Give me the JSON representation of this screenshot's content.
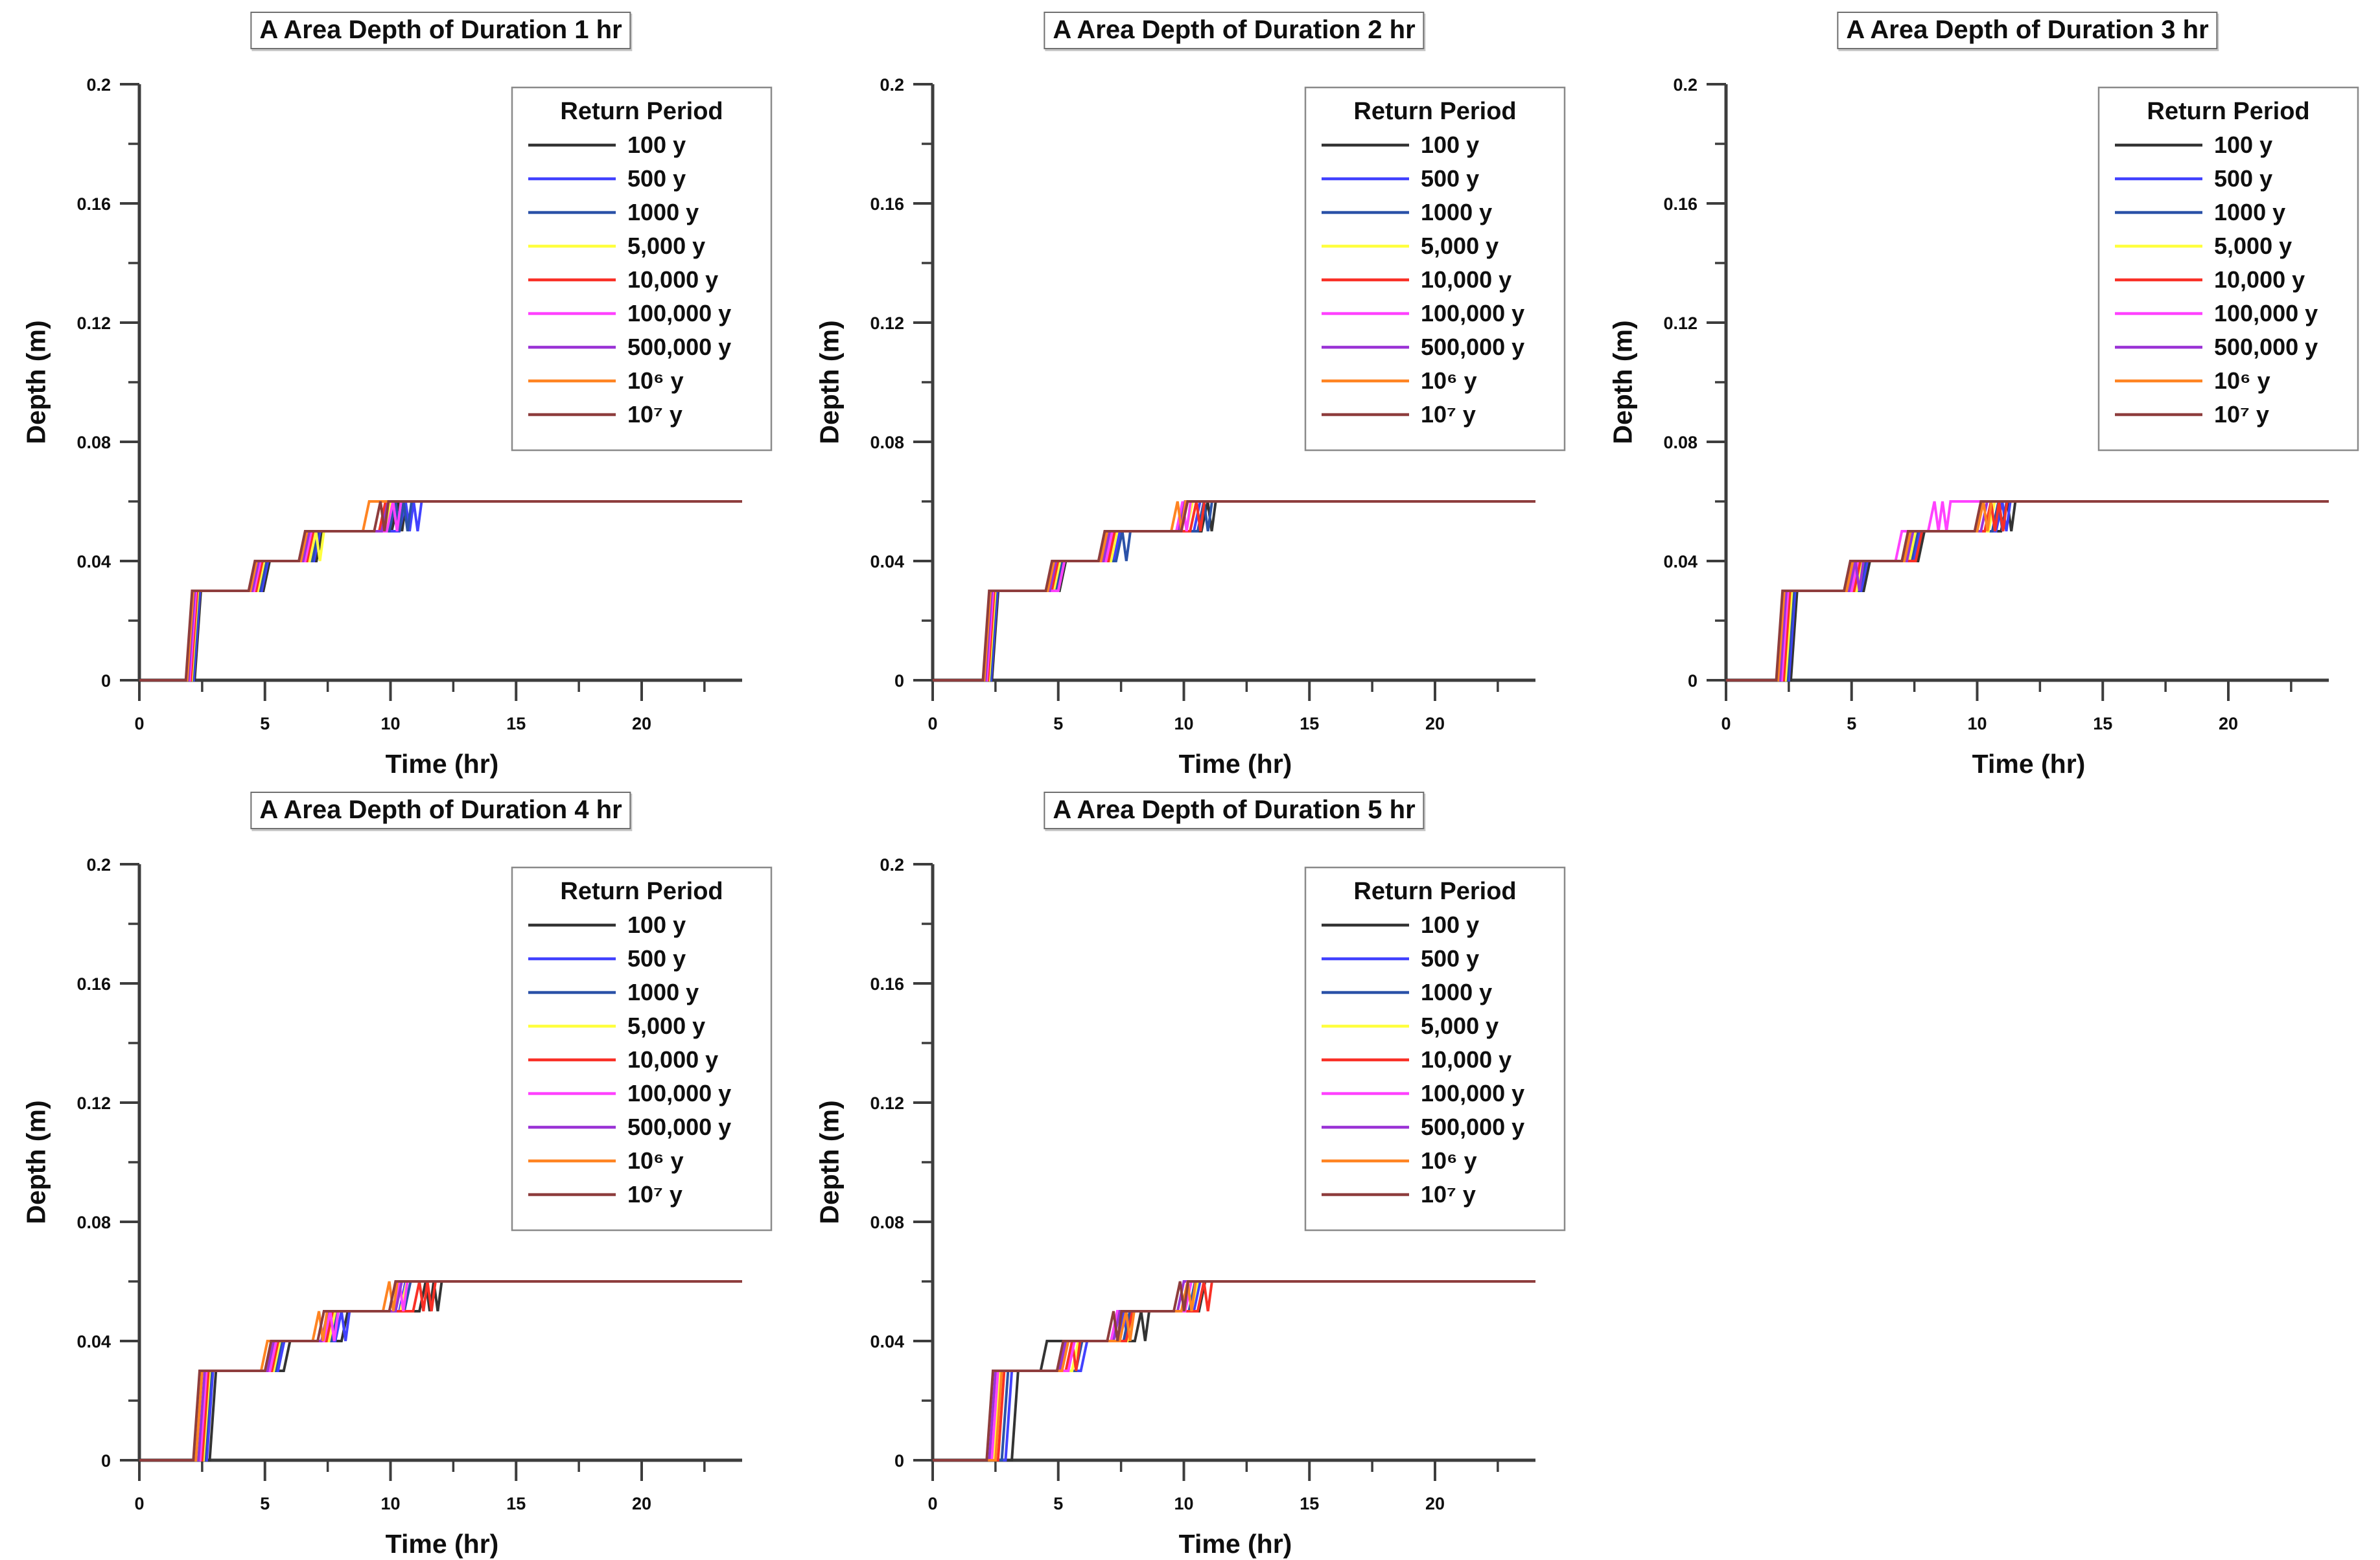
{
  "page": {
    "background": "#ffffff"
  },
  "chart_data": [
    {
      "type": "line",
      "subtype": "step",
      "title": "A Area Depth of Duration 1 hr",
      "xlabel": "Time (hr)",
      "ylabel": "Depth (m)",
      "xlim": [
        0,
        24
      ],
      "ylim": [
        0,
        0.2
      ],
      "xticks_major": [
        0,
        5,
        10,
        15,
        20
      ],
      "xtick_labels": [
        "0",
        "5",
        "10",
        "15",
        "20"
      ],
      "xticks_minor": [
        2.5,
        7.5,
        12.5,
        17.5,
        22.5
      ],
      "yticks_major": [
        0,
        0.04,
        0.08,
        0.12,
        0.16,
        0.2
      ],
      "ytick_labels": [
        "0",
        "0.04",
        "0.08",
        "0.12",
        "0.16",
        "0.2"
      ],
      "yticks_minor": [
        0.02,
        0.06,
        0.1,
        0.14,
        0.18
      ],
      "grid": false,
      "legend_title": "Return Period",
      "legend_position": "upper right",
      "depth_levels": [
        0.03,
        0.04,
        0.05,
        0.06
      ],
      "rise_duration": 0.25,
      "series": [
        {
          "name": "100 y",
          "color": "#333333",
          "step_times": [
            2.2,
            4.94,
            7.05,
            10.05
          ],
          "wiggles": [
            [
              3,
              1
            ]
          ]
        },
        {
          "name": "500 y",
          "color": "#4141ff",
          "step_times": [
            2.16,
            4.87,
            6.95,
            10.35
          ],
          "wiggles": [
            [
              3,
              2
            ]
          ]
        },
        {
          "name": "1000 y",
          "color": "#2b52a8",
          "step_times": [
            2.12,
            4.8,
            6.88,
            9.95
          ],
          "wiggles": [
            [
              3,
              2
            ]
          ]
        },
        {
          "name": "5,000 y",
          "color": "#ffff3d",
          "step_times": [
            2.08,
            4.72,
            6.78,
            9.75
          ],
          "wiggles": [
            [
              2,
              1
            ]
          ]
        },
        {
          "name": "10,000 y",
          "color": "#f93026",
          "step_times": [
            2.05,
            4.65,
            6.68,
            9.55
          ],
          "wiggles": []
        },
        {
          "name": "100,000 y",
          "color": "#ff42ff",
          "step_times": [
            2.0,
            4.57,
            6.6,
            9.85
          ],
          "wiggles": [
            [
              3,
              1
            ]
          ]
        },
        {
          "name": "500,000 y",
          "color": "#9a33d6",
          "step_times": [
            1.95,
            4.5,
            6.52,
            9.65
          ],
          "wiggles": []
        },
        {
          "name": "10⁶ y",
          "color": "#ff8422",
          "step_times": [
            1.9,
            4.42,
            6.43,
            8.9
          ],
          "wiggles": []
        },
        {
          "name": "10⁷ y",
          "color": "#8e3d3d",
          "step_times": [
            1.85,
            4.35,
            6.35,
            9.35
          ],
          "wiggles": [
            [
              3,
              1
            ]
          ]
        }
      ]
    },
    {
      "type": "line",
      "subtype": "step",
      "title": "A Area Depth of Duration 2 hr",
      "xlabel": "Time (hr)",
      "ylabel": "Depth (m)",
      "xlim": [
        0,
        24
      ],
      "ylim": [
        0,
        0.2
      ],
      "xticks_major": [
        0,
        5,
        10,
        15,
        20
      ],
      "xtick_labels": [
        "0",
        "5",
        "10",
        "15",
        "20"
      ],
      "xticks_minor": [
        2.5,
        7.5,
        12.5,
        17.5,
        22.5
      ],
      "yticks_major": [
        0,
        0.04,
        0.08,
        0.12,
        0.16,
        0.2
      ],
      "ytick_labels": [
        "0",
        "0.04",
        "0.08",
        "0.12",
        "0.16",
        "0.2"
      ],
      "yticks_minor": [
        0.02,
        0.06,
        0.1,
        0.14,
        0.18
      ],
      "grid": false,
      "legend_title": "Return Period",
      "legend_position": "upper right",
      "depth_levels": [
        0.03,
        0.04,
        0.05,
        0.06
      ],
      "rise_duration": 0.25,
      "series": [
        {
          "name": "100 y",
          "color": "#333333",
          "step_times": [
            2.36,
            5.05,
            6.78,
            10.7
          ],
          "wiggles": [
            [
              3,
              1
            ]
          ]
        },
        {
          "name": "500 y",
          "color": "#4141ff",
          "step_times": [
            2.32,
            4.95,
            7.2,
            10.4
          ],
          "wiggles": []
        },
        {
          "name": "1000 y",
          "color": "#2b52a8",
          "step_times": [
            2.28,
            4.9,
            7.3,
            10.55
          ],
          "wiggles": [
            [
              2,
              1
            ],
            [
              3,
              1
            ]
          ]
        },
        {
          "name": "5,000 y",
          "color": "#ffff3d",
          "step_times": [
            2.24,
            4.82,
            7.1,
            10.1
          ],
          "wiggles": []
        },
        {
          "name": "10,000 y",
          "color": "#f93026",
          "step_times": [
            2.2,
            4.74,
            7.0,
            10.25
          ],
          "wiggles": [
            [
              3,
              1
            ]
          ]
        },
        {
          "name": "100,000 y",
          "color": "#ff42ff",
          "step_times": [
            2.15,
            5.0,
            6.9,
            9.7
          ],
          "wiggles": [
            [
              3,
              1
            ]
          ]
        },
        {
          "name": "500,000 y",
          "color": "#9a33d6",
          "step_times": [
            2.1,
            4.66,
            6.8,
            9.8
          ],
          "wiggles": []
        },
        {
          "name": "10⁶ y",
          "color": "#ff8422",
          "step_times": [
            2.05,
            4.58,
            6.7,
            9.5
          ],
          "wiggles": [
            [
              3,
              1
            ]
          ]
        },
        {
          "name": "10⁷ y",
          "color": "#8e3d3d",
          "step_times": [
            2.0,
            4.5,
            6.6,
            9.9
          ],
          "wiggles": []
        }
      ]
    },
    {
      "type": "line",
      "subtype": "step",
      "title": "A Area Depth of Duration 3 hr",
      "xlabel": "Time (hr)",
      "ylabel": "Depth (m)",
      "xlim": [
        0,
        24
      ],
      "ylim": [
        0,
        0.2
      ],
      "xticks_major": [
        0,
        5,
        10,
        15,
        20
      ],
      "xtick_labels": [
        "0",
        "5",
        "10",
        "15",
        "20"
      ],
      "xticks_minor": [
        2.5,
        7.5,
        12.5,
        17.5,
        22.5
      ],
      "yticks_major": [
        0,
        0.04,
        0.08,
        0.12,
        0.16,
        0.2
      ],
      "ytick_labels": [
        "0",
        "0.04",
        "0.08",
        "0.12",
        "0.16",
        "0.2"
      ],
      "yticks_minor": [
        0.02,
        0.06,
        0.1,
        0.14,
        0.18
      ],
      "grid": false,
      "legend_title": "Return Period",
      "legend_position": "upper right",
      "depth_levels": [
        0.03,
        0.04,
        0.05,
        0.06
      ],
      "rise_duration": 0.25,
      "series": [
        {
          "name": "100 y",
          "color": "#333333",
          "step_times": [
            2.58,
            5.48,
            7.65,
            10.95
          ],
          "wiggles": [
            [
              3,
              1
            ]
          ]
        },
        {
          "name": "500 y",
          "color": "#4141ff",
          "step_times": [
            2.5,
            5.38,
            7.46,
            10.75
          ],
          "wiggles": [
            [
              3,
              1
            ]
          ]
        },
        {
          "name": "1000 y",
          "color": "#2b52a8",
          "step_times": [
            2.44,
            5.3,
            7.38,
            10.6
          ],
          "wiggles": [
            [
              3,
              1
            ]
          ]
        },
        {
          "name": "5,000 y",
          "color": "#ffff3d",
          "step_times": [
            2.37,
            5.2,
            7.3,
            10.45
          ],
          "wiggles": []
        },
        {
          "name": "10,000 y",
          "color": "#f93026",
          "step_times": [
            2.3,
            5.1,
            7.55,
            10.3
          ],
          "wiggles": [
            [
              3,
              2
            ]
          ]
        },
        {
          "name": "100,000 y",
          "color": "#ff42ff",
          "step_times": [
            2.22,
            5.0,
            6.75,
            8.05
          ],
          "wiggles": [
            [
              3,
              2
            ]
          ]
        },
        {
          "name": "500,000 y",
          "color": "#9a33d6",
          "step_times": [
            2.15,
            4.9,
            7.2,
            10.15
          ],
          "wiggles": [
            [
              1,
              1
            ]
          ]
        },
        {
          "name": "10⁶ y",
          "color": "#ff8422",
          "step_times": [
            2.07,
            4.8,
            7.1,
            10.0
          ],
          "wiggles": [
            [
              3,
              1
            ]
          ]
        },
        {
          "name": "10⁷ y",
          "color": "#8e3d3d",
          "step_times": [
            2.0,
            4.7,
            7.0,
            9.9
          ],
          "wiggles": []
        }
      ]
    },
    {
      "type": "line",
      "subtype": "step",
      "title": "A Area Depth of Duration 4 hr",
      "xlabel": "Time (hr)",
      "ylabel": "Depth (m)",
      "xlim": [
        0,
        24
      ],
      "ylim": [
        0,
        0.2
      ],
      "xticks_major": [
        0,
        5,
        10,
        15,
        20
      ],
      "xtick_labels": [
        "0",
        "5",
        "10",
        "15",
        "20"
      ],
      "xticks_minor": [
        2.5,
        7.5,
        12.5,
        17.5,
        22.5
      ],
      "yticks_major": [
        0,
        0.04,
        0.08,
        0.12,
        0.16,
        0.2
      ],
      "ytick_labels": [
        "0",
        "0.04",
        "0.08",
        "0.12",
        "0.16",
        "0.2"
      ],
      "yticks_minor": [
        0.02,
        0.06,
        0.1,
        0.14,
        0.18
      ],
      "grid": false,
      "legend_title": "Return Period",
      "legend_position": "upper right",
      "depth_levels": [
        0.03,
        0.04,
        0.05,
        0.06
      ],
      "rise_duration": 0.25,
      "series": [
        {
          "name": "100 y",
          "color": "#333333",
          "step_times": [
            2.8,
            5.75,
            8.05,
            11.15
          ],
          "wiggles": [
            [
              3,
              2
            ]
          ]
        },
        {
          "name": "500 y",
          "color": "#4141ff",
          "step_times": [
            2.68,
            5.52,
            7.8,
            10.35
          ],
          "wiggles": [
            [
              2,
              1
            ]
          ]
        },
        {
          "name": "1000 y",
          "color": "#2b52a8",
          "step_times": [
            2.6,
            5.42,
            7.65,
            10.55
          ],
          "wiggles": []
        },
        {
          "name": "5,000 y",
          "color": "#ffff3d",
          "step_times": [
            2.55,
            5.35,
            7.55,
            10.4
          ],
          "wiggles": []
        },
        {
          "name": "10,000 y",
          "color": "#f93026",
          "step_times": [
            2.5,
            5.28,
            7.45,
            10.9
          ],
          "wiggles": [
            [
              3,
              2
            ]
          ]
        },
        {
          "name": "100,000 y",
          "color": "#ff42ff",
          "step_times": [
            2.42,
            5.2,
            7.35,
            10.1
          ],
          "wiggles": [
            [
              2,
              1
            ],
            [
              3,
              1
            ]
          ]
        },
        {
          "name": "500,000 y",
          "color": "#9a33d6",
          "step_times": [
            2.35,
            5.1,
            7.25,
            10.2
          ],
          "wiggles": []
        },
        {
          "name": "10⁶ y",
          "color": "#ff8422",
          "step_times": [
            2.25,
            4.85,
            6.9,
            9.7
          ],
          "wiggles": [
            [
              2,
              1
            ],
            [
              3,
              1
            ]
          ]
        },
        {
          "name": "10⁷ y",
          "color": "#8e3d3d",
          "step_times": [
            2.15,
            5.0,
            7.1,
            9.95
          ],
          "wiggles": []
        }
      ]
    },
    {
      "type": "line",
      "subtype": "step",
      "title": "A Area Depth of Duration 5 hr",
      "xlabel": "Time (hr)",
      "ylabel": "Depth (m)",
      "xlim": [
        0,
        24
      ],
      "ylim": [
        0,
        0.2
      ],
      "xticks_major": [
        0,
        5,
        10,
        15,
        20
      ],
      "xtick_labels": [
        "0",
        "5",
        "10",
        "15",
        "20"
      ],
      "xticks_minor": [
        2.5,
        7.5,
        12.5,
        17.5,
        22.5
      ],
      "yticks_major": [
        0,
        0.04,
        0.08,
        0.12,
        0.16,
        0.2
      ],
      "ytick_labels": [
        "0",
        "0.04",
        "0.08",
        "0.12",
        "0.16",
        "0.2"
      ],
      "yticks_minor": [
        0.02,
        0.06,
        0.1,
        0.14,
        0.18
      ],
      "grid": false,
      "legend_title": "Return Period",
      "legend_position": "upper right",
      "depth_levels": [
        0.03,
        0.04,
        0.05,
        0.06
      ],
      "rise_duration": 0.25,
      "series": [
        {
          "name": "100 y",
          "color": "#333333",
          "step_times": [
            3.15,
            4.3,
            8.05,
            10.6
          ],
          "wiggles": [
            [
              2,
              1
            ]
          ]
        },
        {
          "name": "500 y",
          "color": "#4141ff",
          "step_times": [
            2.9,
            5.9,
            7.35,
            10.4
          ],
          "wiggles": [
            [
              2,
              1
            ]
          ]
        },
        {
          "name": "1000 y",
          "color": "#2b52a8",
          "step_times": [
            2.75,
            5.7,
            7.6,
            10.2
          ],
          "wiggles": []
        },
        {
          "name": "5,000 y",
          "color": "#ffff3d",
          "step_times": [
            2.45,
            5.55,
            7.75,
            10.3
          ],
          "wiggles": []
        },
        {
          "name": "10,000 y",
          "color": "#f93026",
          "step_times": [
            2.6,
            5.3,
            7.7,
            10.55
          ],
          "wiggles": [
            [
              1,
              1
            ],
            [
              3,
              1
            ]
          ]
        },
        {
          "name": "100,000 y",
          "color": "#ff42ff",
          "step_times": [
            2.35,
            5.4,
            7.1,
            10.05
          ],
          "wiggles": []
        },
        {
          "name": "500,000 y",
          "color": "#9a33d6",
          "step_times": [
            2.25,
            5.05,
            7.2,
            9.75
          ],
          "wiggles": []
        },
        {
          "name": "10⁶ y",
          "color": "#ff8422",
          "step_times": [
            2.5,
            5.15,
            7.45,
            9.9
          ],
          "wiggles": [
            [
              2,
              1
            ],
            [
              3,
              1
            ]
          ]
        },
        {
          "name": "10⁷ y",
          "color": "#8e3d3d",
          "step_times": [
            2.15,
            4.95,
            6.95,
            9.6
          ],
          "wiggles": [
            [
              2,
              1
            ],
            [
              3,
              1
            ]
          ]
        }
      ]
    }
  ]
}
